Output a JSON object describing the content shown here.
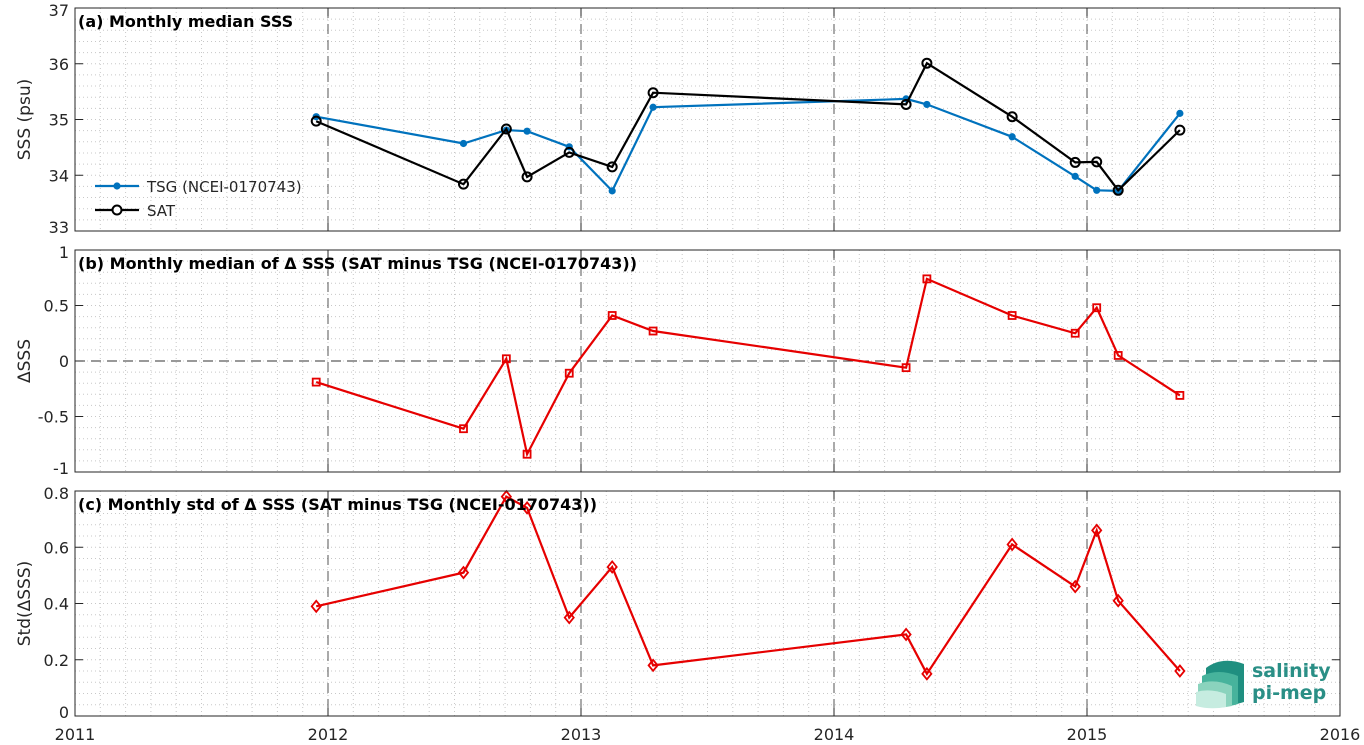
{
  "chart_data": [
    {
      "type": "line",
      "title": "(a) Monthly median SSS",
      "xlabel": "",
      "ylabel": "SSS (psu)",
      "xlim": [
        "2011-01-01",
        "2016-01-01"
      ],
      "ylim": [
        33,
        37
      ],
      "yticks": [
        33,
        34,
        35,
        36,
        37
      ],
      "grid": true,
      "legend": "lower-left",
      "series": [
        {
          "name": "TSG (NCEI-0170743)",
          "color": "#0072BD",
          "marker": "dot",
          "x": [
            "2011-12-15",
            "2012-07-15",
            "2012-09-15",
            "2012-10-15",
            "2012-12-15",
            "2013-02-15",
            "2013-04-15",
            "2014-04-15",
            "2014-05-15",
            "2014-09-15",
            "2014-12-15",
            "2015-01-15",
            "2015-02-15",
            "2015-05-15"
          ],
          "values": [
            35.05,
            34.57,
            34.81,
            34.79,
            34.51,
            33.72,
            35.22,
            35.37,
            35.27,
            34.69,
            33.98,
            33.73,
            33.72,
            35.11
          ]
        },
        {
          "name": "SAT",
          "color": "#000000",
          "marker": "circle",
          "x": [
            "2011-12-15",
            "2012-07-15",
            "2012-09-15",
            "2012-10-15",
            "2012-12-15",
            "2013-02-15",
            "2013-04-15",
            "2014-04-15",
            "2014-05-15",
            "2014-09-15",
            "2014-12-15",
            "2015-01-15",
            "2015-02-15",
            "2015-05-15"
          ],
          "values": [
            34.97,
            33.84,
            34.83,
            33.97,
            34.41,
            34.15,
            35.48,
            35.27,
            36.01,
            35.05,
            34.23,
            34.24,
            33.73,
            34.81
          ]
        }
      ]
    },
    {
      "type": "line",
      "title": "(b) Monthly median of Δ SSS (SAT minus TSG (NCEI-0170743))",
      "xlabel": "",
      "ylabel": "ΔSSS",
      "xlim": [
        "2011-01-01",
        "2016-01-01"
      ],
      "ylim": [
        -1,
        1
      ],
      "yticks": [
        -1,
        -0.5,
        0,
        0.5,
        1
      ],
      "grid": true,
      "zero_line": true,
      "series": [
        {
          "color": "#E60000",
          "marker": "square",
          "x": [
            "2011-12-15",
            "2012-07-15",
            "2012-09-15",
            "2012-10-15",
            "2012-12-15",
            "2013-02-15",
            "2013-04-15",
            "2014-04-15",
            "2014-05-15",
            "2014-09-15",
            "2014-12-15",
            "2015-01-15",
            "2015-02-15",
            "2015-05-15"
          ],
          "values": [
            -0.19,
            -0.61,
            0.02,
            -0.84,
            -0.11,
            0.41,
            0.27,
            -0.06,
            0.74,
            0.41,
            0.25,
            0.48,
            0.05,
            -0.31
          ]
        }
      ]
    },
    {
      "type": "line",
      "title": "(c) Monthly std of Δ SSS (SAT minus TSG (NCEI-0170743))",
      "xlabel": "",
      "ylabel": "Std(ΔSSS)",
      "xlim": [
        "2011-01-01",
        "2016-01-01"
      ],
      "ylim": [
        0,
        0.8
      ],
      "yticks": [
        0,
        0.2,
        0.4,
        0.6,
        0.8
      ],
      "xticks": [
        "2011",
        "2012",
        "2013",
        "2014",
        "2015",
        "2016"
      ],
      "grid": true,
      "series": [
        {
          "color": "#E60000",
          "marker": "diamond",
          "x": [
            "2011-12-15",
            "2012-07-15",
            "2012-09-15",
            "2012-10-15",
            "2012-12-15",
            "2013-02-15",
            "2013-04-15",
            "2014-04-15",
            "2014-05-15",
            "2014-09-15",
            "2014-12-15",
            "2015-01-15",
            "2015-02-15",
            "2015-05-15"
          ],
          "values": [
            0.39,
            0.51,
            0.78,
            0.74,
            0.35,
            0.53,
            0.18,
            0.29,
            0.15,
            0.61,
            0.46,
            0.66,
            0.41,
            0.16
          ]
        }
      ]
    }
  ],
  "logo": {
    "line1": "salinity",
    "line2": "pi-mep",
    "color": "#2a8f86"
  }
}
